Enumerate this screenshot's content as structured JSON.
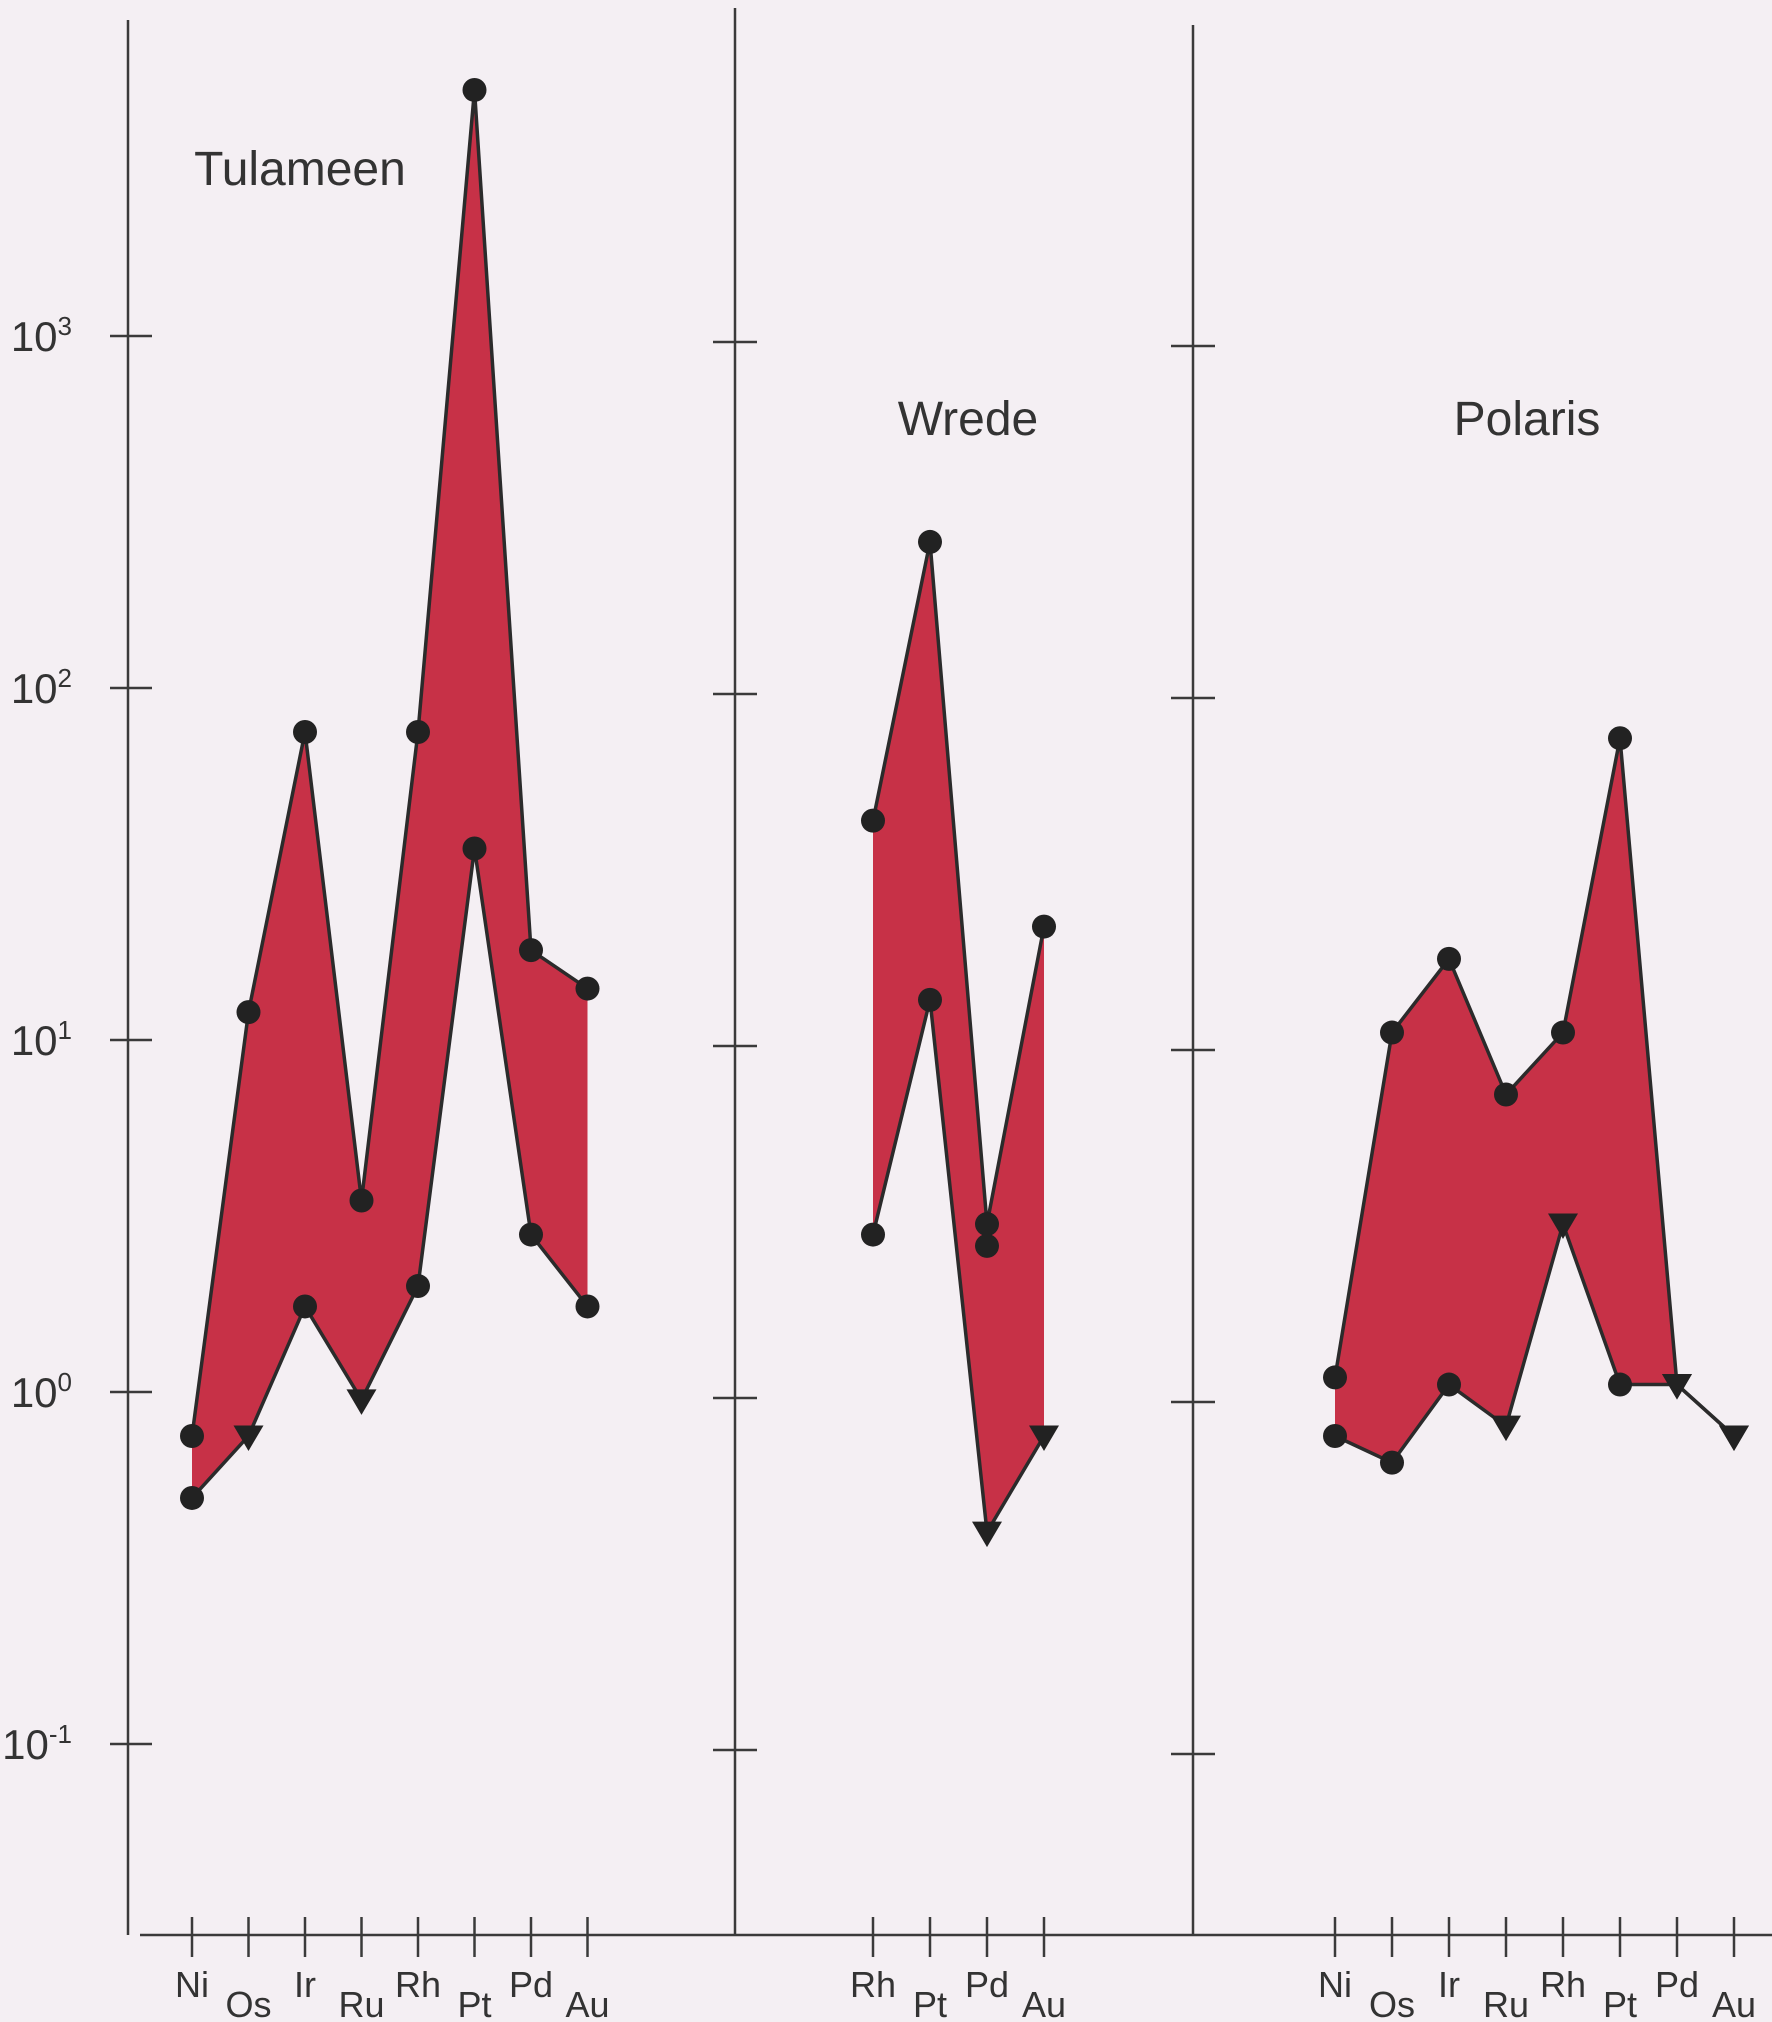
{
  "chart_data": {
    "type": "area",
    "y_scale": "log",
    "ylim": [
      0.03,
      10000
    ],
    "y_ticks": [
      {
        "value": 1000,
        "base": "10",
        "exp": "3"
      },
      {
        "value": 100,
        "base": "10",
        "exp": "2"
      },
      {
        "value": 10,
        "base": "10",
        "exp": "1"
      },
      {
        "value": 1,
        "base": "10",
        "exp": "0"
      },
      {
        "value": 0.1,
        "base": "10",
        "exp": "-1"
      }
    ],
    "fill_color": "#c4263d",
    "panels": [
      {
        "title": "Tulameen",
        "categories": [
          {
            "label": "Ni",
            "pos": "high"
          },
          {
            "label": "Os",
            "pos": "low"
          },
          {
            "label": "Ir",
            "pos": "high"
          },
          {
            "label": "Ru",
            "pos": "low"
          },
          {
            "label": "Rh",
            "pos": "high"
          },
          {
            "label": "Pt",
            "pos": "low"
          },
          {
            "label": "Pd",
            "pos": "high"
          },
          {
            "label": "Au",
            "pos": "low"
          }
        ],
        "upper": [
          0.75,
          12,
          75,
          3.5,
          75,
          5000,
          18,
          14
        ],
        "lower": [
          0.5,
          0.75,
          1.75,
          0.95,
          2.0,
          35,
          2.8,
          1.75
        ],
        "upper_markers": [
          "circle",
          "circle",
          "circle",
          "circle",
          "circle",
          "circle",
          "circle",
          "circle"
        ],
        "lower_markers": [
          "circle",
          "triangle",
          "circle",
          "triangle",
          "circle",
          "circle",
          "circle",
          "circle"
        ]
      },
      {
        "title": "Wrede",
        "categories": [
          {
            "label": "Rh",
            "pos": "high"
          },
          {
            "label": "Pt",
            "pos": "low"
          },
          {
            "label": "Pd",
            "pos": "high"
          },
          {
            "label": "Au",
            "pos": "low"
          }
        ],
        "upper": [
          42,
          260,
          3.0,
          21
        ],
        "lower": [
          2.8,
          13,
          2.6,
          0.75
        ],
        "lower_extra": [
          null,
          null,
          0.4,
          null
        ],
        "upper_markers": [
          "circle",
          "circle",
          "circle",
          "circle"
        ],
        "lower_markers": [
          "circle",
          "circle",
          "circle",
          "triangle"
        ]
      },
      {
        "title": "Polaris",
        "categories": [
          {
            "label": "Ni",
            "pos": "high"
          },
          {
            "label": "Os",
            "pos": "low"
          },
          {
            "label": "Ir",
            "pos": "high"
          },
          {
            "label": "Ru",
            "pos": "low"
          },
          {
            "label": "Rh",
            "pos": "high"
          },
          {
            "label": "Pt",
            "pos": "low"
          },
          {
            "label": "Pd",
            "pos": "high"
          },
          {
            "label": "Au",
            "pos": "low"
          }
        ],
        "upper": [
          1.1,
          10.5,
          17,
          7,
          10.5,
          72,
          1.05,
          0.75
        ],
        "lower": [
          0.75,
          0.63,
          1.05,
          0.8,
          3.0,
          1.05,
          1.05,
          0.75
        ],
        "upper_markers": [
          "circle",
          "circle",
          "circle",
          "circle",
          "circle",
          "circle",
          "triangle",
          "triangle"
        ],
        "lower_markers": [
          "circle",
          "circle",
          "circle",
          "triangle",
          "triangle",
          "circle",
          "triangle",
          "triangle"
        ]
      }
    ]
  }
}
